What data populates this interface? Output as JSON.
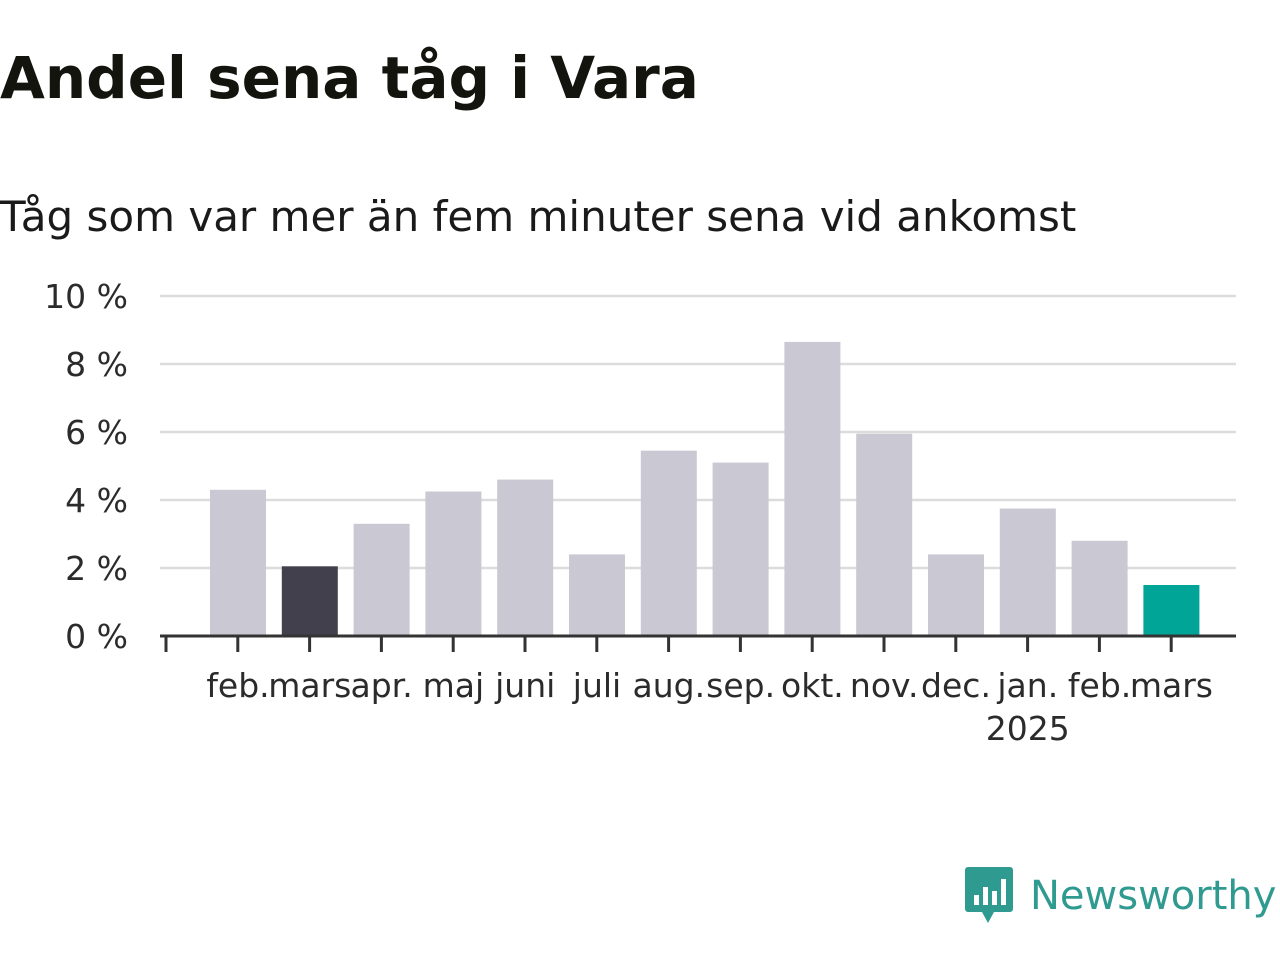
{
  "chart_data": {
    "type": "bar",
    "title": "Andel sena tåg i Vara",
    "subtitle": "Tåg som var mer än fem minuter sena vid ankomst",
    "categories": [
      "feb.",
      "mars",
      "apr.",
      "maj",
      "juni",
      "juli",
      "aug.",
      "sep.",
      "okt.",
      "nov.",
      "dec.",
      "jan.",
      "feb.",
      "mars"
    ],
    "year_label": "2025",
    "year_label_under_index": 11,
    "values": [
      4.3,
      2.05,
      3.3,
      4.25,
      4.6,
      2.4,
      5.45,
      5.1,
      8.65,
      5.95,
      2.4,
      3.75,
      2.8,
      1.5
    ],
    "highlight": {
      "1": "#41404c",
      "13": "#00a598"
    },
    "bar_color": "#c9c8d3",
    "ylim": [
      0,
      10
    ],
    "yticks": [
      0,
      2,
      4,
      6,
      8,
      10
    ],
    "ytick_labels": [
      "0 %",
      "2 %",
      "4 %",
      "6 %",
      "8 %",
      "10 %"
    ],
    "grid": true,
    "xlabel": "",
    "ylabel": ""
  },
  "brand": {
    "name": "Newsworthy",
    "icon": "newsworthy-logo-icon",
    "color": "#2f9a8f"
  }
}
